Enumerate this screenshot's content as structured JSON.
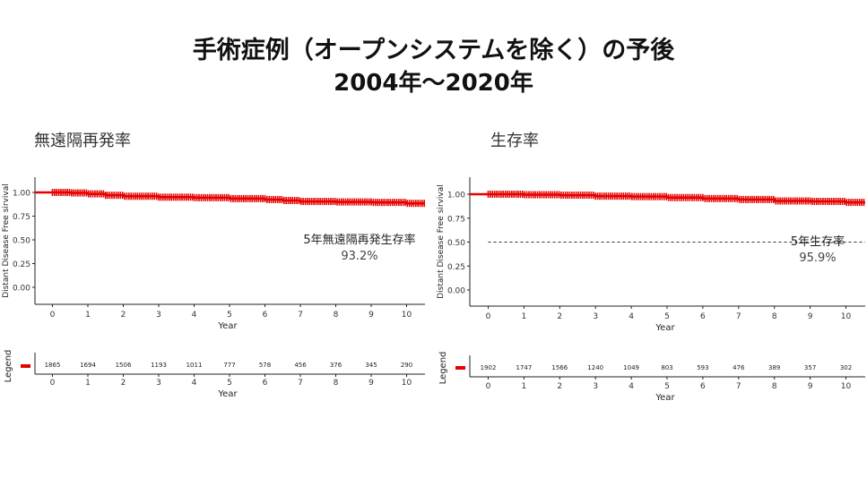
{
  "page": {
    "title_line1": "手術症例（オープンシステムを除く）の予後",
    "title_line2": "2004年～2020年"
  },
  "chart_data": [
    {
      "type": "line",
      "panel_title": "無遠隔再発率",
      "ylabel": "Distant Disease Free sirvival",
      "xlabel": "Year",
      "ylim": [
        0,
        1
      ],
      "xlim": [
        0,
        10
      ],
      "yticks": [
        "0.00",
        "0.25",
        "0.50",
        "0.75",
        "1.00"
      ],
      "xticks": [
        "0",
        "1",
        "2",
        "3",
        "4",
        "5",
        "6",
        "7",
        "8",
        "9",
        "10"
      ],
      "series": [
        {
          "color": "#e60000",
          "x": [
            0,
            0.5,
            1,
            1.5,
            2,
            3,
            4,
            5,
            6,
            6.5,
            7,
            8,
            9,
            10
          ],
          "y": [
            1.0,
            0.995,
            0.985,
            0.97,
            0.96,
            0.95,
            0.945,
            0.935,
            0.925,
            0.915,
            0.905,
            0.9,
            0.895,
            0.885
          ]
        }
      ],
      "annotation_label": "5年無遠隔再発生存率",
      "annotation_value": "93.2%",
      "median_line": false,
      "risk_table": {
        "ylabel": "Legend",
        "xlabel": "Year",
        "counts": [
          "1865",
          "1694",
          "1506",
          "1193",
          "1011",
          "777",
          "578",
          "456",
          "376",
          "345",
          "290"
        ]
      }
    },
    {
      "type": "line",
      "panel_title": "生存率",
      "ylabel": "Distant Disease Free sirvival",
      "xlabel": "Year",
      "ylim": [
        0,
        1
      ],
      "xlim": [
        0,
        10
      ],
      "yticks": [
        "0.00",
        "0.25",
        "0.50",
        "0.75",
        "1.00"
      ],
      "xticks": [
        "0",
        "1",
        "2",
        "3",
        "4",
        "5",
        "6",
        "7",
        "8",
        "9",
        "10"
      ],
      "series": [
        {
          "color": "#e60000",
          "x": [
            0,
            1,
            2,
            3,
            4,
            5,
            6,
            7,
            8,
            9,
            10
          ],
          "y": [
            1.0,
            0.995,
            0.99,
            0.98,
            0.975,
            0.965,
            0.955,
            0.945,
            0.93,
            0.925,
            0.915
          ]
        }
      ],
      "annotation_label": "5年生存率",
      "annotation_value": "95.9%",
      "median_line": true,
      "risk_table": {
        "ylabel": "Legend",
        "xlabel": "Year",
        "counts": [
          "1902",
          "1747",
          "1566",
          "1240",
          "1049",
          "803",
          "593",
          "476",
          "389",
          "357",
          "302"
        ]
      }
    }
  ]
}
